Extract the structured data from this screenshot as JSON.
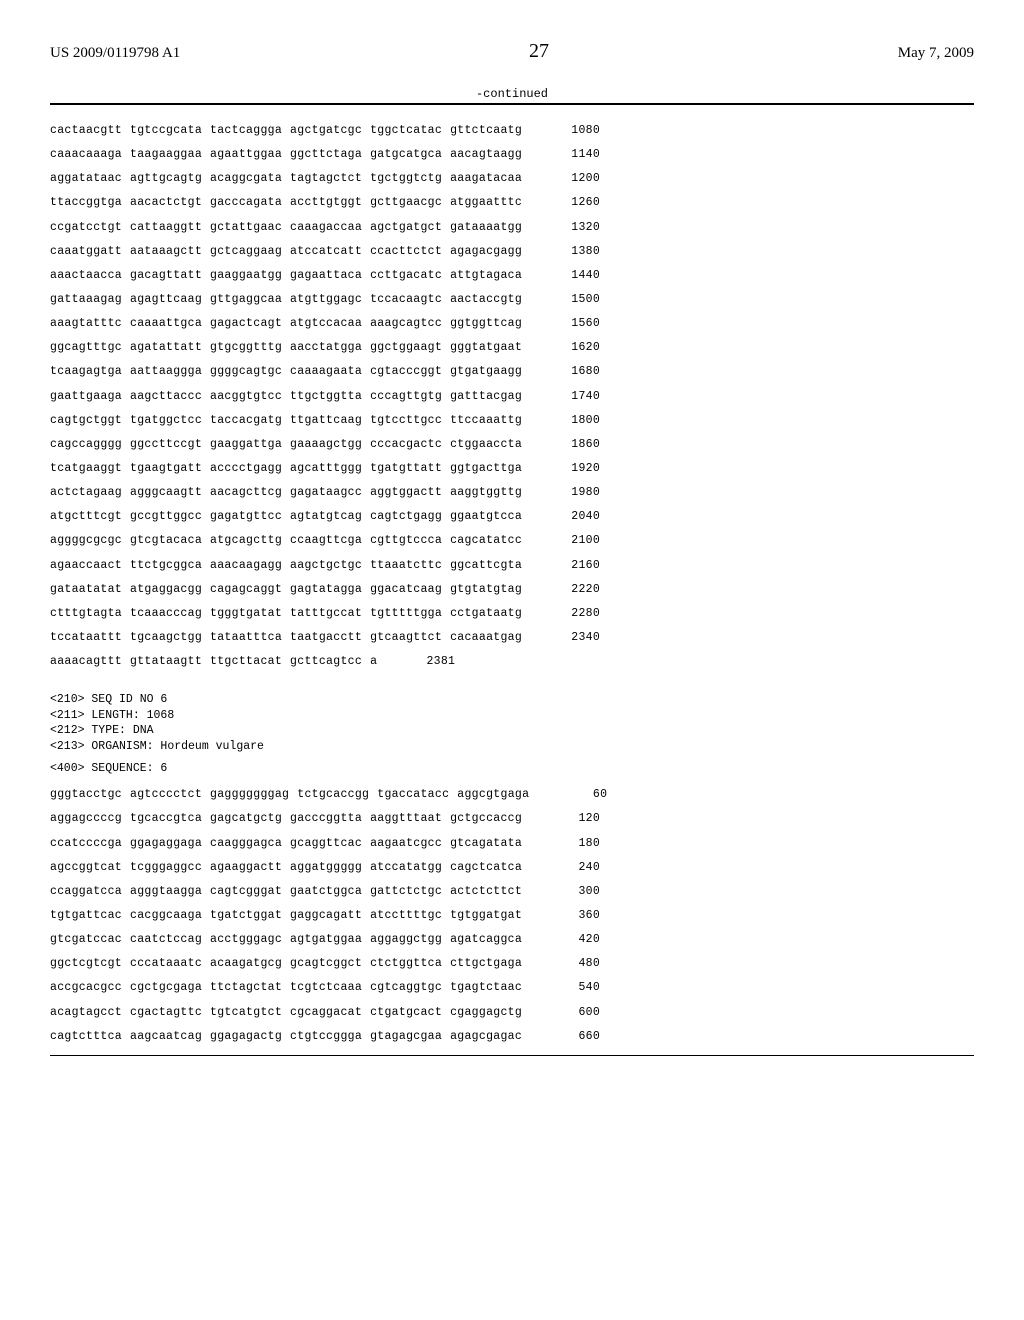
{
  "header": {
    "pub_number": "US 2009/0119798 A1",
    "page_number": "27",
    "pub_date": "May 7, 2009"
  },
  "continued_label": "-continued",
  "sequence1": {
    "lines": [
      {
        "groups": [
          "cactaacgtt",
          "tgtccgcata",
          "tactcaggga",
          "agctgatcgc",
          "tggctcatac",
          "gttctcaatg"
        ],
        "pos": 1080
      },
      {
        "groups": [
          "caaacaaaga",
          "taagaaggaa",
          "agaattggaa",
          "ggcttctaga",
          "gatgcatgca",
          "aacagtaagg"
        ],
        "pos": 1140
      },
      {
        "groups": [
          "aggatataac",
          "agttgcagtg",
          "acaggcgata",
          "tagtagctct",
          "tgctggtctg",
          "aaagatacaa"
        ],
        "pos": 1200
      },
      {
        "groups": [
          "ttaccggtga",
          "aacactctgt",
          "gacccagata",
          "accttgtggt",
          "gcttgaacgc",
          "atggaatttc"
        ],
        "pos": 1260
      },
      {
        "groups": [
          "ccgatcctgt",
          "cattaaggtt",
          "gctattgaac",
          "caaagaccaa",
          "agctgatgct",
          "gataaaatgg"
        ],
        "pos": 1320
      },
      {
        "groups": [
          "caaatggatt",
          "aataaagctt",
          "gctcaggaag",
          "atccatcatt",
          "ccacttctct",
          "agagacgagg"
        ],
        "pos": 1380
      },
      {
        "groups": [
          "aaactaacca",
          "gacagttatt",
          "gaaggaatgg",
          "gagaattaca",
          "ccttgacatc",
          "attgtagaca"
        ],
        "pos": 1440
      },
      {
        "groups": [
          "gattaaagag",
          "agagttcaag",
          "gttgaggcaa",
          "atgttggagc",
          "tccacaagtc",
          "aactaccgtg"
        ],
        "pos": 1500
      },
      {
        "groups": [
          "aaagtatttc",
          "caaaattgca",
          "gagactcagt",
          "atgtccacaa",
          "aaagcagtcc",
          "ggtggttcag"
        ],
        "pos": 1560
      },
      {
        "groups": [
          "ggcagtttgc",
          "agatattatt",
          "gtgcggtttg",
          "aacctatgga",
          "ggctggaagt",
          "gggtatgaat"
        ],
        "pos": 1620
      },
      {
        "groups": [
          "tcaagagtga",
          "aattaaggga",
          "ggggcagtgc",
          "caaaagaata",
          "cgtacccggt",
          "gtgatgaagg"
        ],
        "pos": 1680
      },
      {
        "groups": [
          "gaattgaaga",
          "aagcttaccc",
          "aacggtgtcc",
          "ttgctggtta",
          "cccagttgtg",
          "gatttacgag"
        ],
        "pos": 1740
      },
      {
        "groups": [
          "cagtgctggt",
          "tgatggctcc",
          "taccacgatg",
          "ttgattcaag",
          "tgtccttgcc",
          "ttccaaattg"
        ],
        "pos": 1800
      },
      {
        "groups": [
          "cagccagggg",
          "ggccttccgt",
          "gaaggattga",
          "gaaaagctgg",
          "cccacgactc",
          "ctggaaccta"
        ],
        "pos": 1860
      },
      {
        "groups": [
          "tcatgaaggt",
          "tgaagtgatt",
          "acccctgagg",
          "agcatttggg",
          "tgatgttatt",
          "ggtgacttga"
        ],
        "pos": 1920
      },
      {
        "groups": [
          "actctagaag",
          "agggcaagtt",
          "aacagcttcg",
          "gagataagcc",
          "aggtggactt",
          "aaggtggttg"
        ],
        "pos": 1980
      },
      {
        "groups": [
          "atgctttcgt",
          "gccgttggcc",
          "gagatgttcc",
          "agtatgtcag",
          "cagtctgagg",
          "ggaatgtcca"
        ],
        "pos": 2040
      },
      {
        "groups": [
          "aggggcgcgc",
          "gtcgtacaca",
          "atgcagcttg",
          "ccaagttcga",
          "cgttgtccca",
          "cagcatatcc"
        ],
        "pos": 2100
      },
      {
        "groups": [
          "agaaccaact",
          "ttctgcggca",
          "aaacaagagg",
          "aagctgctgc",
          "ttaaatcttc",
          "ggcattcgta"
        ],
        "pos": 2160
      },
      {
        "groups": [
          "gataatatat",
          "atgaggacgg",
          "cagagcaggt",
          "gagtatagga",
          "ggacatcaag",
          "gtgtatgtag"
        ],
        "pos": 2220
      },
      {
        "groups": [
          "ctttgtagta",
          "tcaaacccag",
          "tgggtgatat",
          "tatttgccat",
          "tgtttttgga",
          "cctgataatg"
        ],
        "pos": 2280
      },
      {
        "groups": [
          "tccataattt",
          "tgcaagctgg",
          "tataatttca",
          "taatgacctt",
          "gtcaagttct",
          "cacaaatgag"
        ],
        "pos": 2340
      },
      {
        "groups": [
          "aaaacagttt",
          "gttataagtt",
          "ttgcttacat",
          "gcttcagtcc",
          "a"
        ],
        "pos": 2381
      }
    ]
  },
  "meta": {
    "id": "<210> SEQ ID NO 6",
    "length": "<211> LENGTH: 1068",
    "type": "<212> TYPE: DNA",
    "organism": "<213> ORGANISM: Hordeum vulgare"
  },
  "seq_header": "<400> SEQUENCE: 6",
  "sequence2": {
    "lines": [
      {
        "groups": [
          "gggtacctgc",
          "agtcccctct",
          "gagggggggag",
          "tctgcaccgg",
          "tgaccatacc",
          "aggcgtgaga"
        ],
        "pos": 60
      },
      {
        "groups": [
          "aggagccccg",
          "tgcaccgtca",
          "gagcatgctg",
          "gacccggtta",
          "aaggtttaat",
          "gctgccaccg"
        ],
        "pos": 120
      },
      {
        "groups": [
          "ccatccccga",
          "ggagaggaga",
          "caagggagca",
          "gcaggttcac",
          "aagaatcgcc",
          "gtcagatata"
        ],
        "pos": 180
      },
      {
        "groups": [
          "agccggtcat",
          "tcgggaggcc",
          "agaaggactt",
          "aggatggggg",
          "atccatatgg",
          "cagctcatca"
        ],
        "pos": 240
      },
      {
        "groups": [
          "ccaggatcca",
          "agggtaagga",
          "cagtcgggat",
          "gaatctggca",
          "gattctctgc",
          "actctcttct"
        ],
        "pos": 300
      },
      {
        "groups": [
          "tgtgattcac",
          "cacggcaaga",
          "tgatctggat",
          "gaggcagatt",
          "atccttttgc",
          "tgtggatgat"
        ],
        "pos": 360
      },
      {
        "groups": [
          "gtcgatccac",
          "caatctccag",
          "acctgggagc",
          "agtgatggaa",
          "aggaggctgg",
          "agatcaggca"
        ],
        "pos": 420
      },
      {
        "groups": [
          "ggctcgtcgt",
          "cccataaatc",
          "acaagatgcg",
          "gcagtcggct",
          "ctctggttca",
          "cttgctgaga"
        ],
        "pos": 480
      },
      {
        "groups": [
          "accgcacgcc",
          "cgctgcgaga",
          "ttctagctat",
          "tcgtctcaaa",
          "cgtcaggtgc",
          "tgagtctaac"
        ],
        "pos": 540
      },
      {
        "groups": [
          "acagtagcct",
          "cgactagttc",
          "tgtcatgtct",
          "cgcaggacat",
          "ctgatgcact",
          "cgaggagctg"
        ],
        "pos": 600
      },
      {
        "groups": [
          "cagtctttca",
          "aagcaatcag",
          "ggagagactg",
          "ctgtccggga",
          "gtagagcgaa",
          "agagcgagac"
        ],
        "pos": 660
      }
    ]
  }
}
